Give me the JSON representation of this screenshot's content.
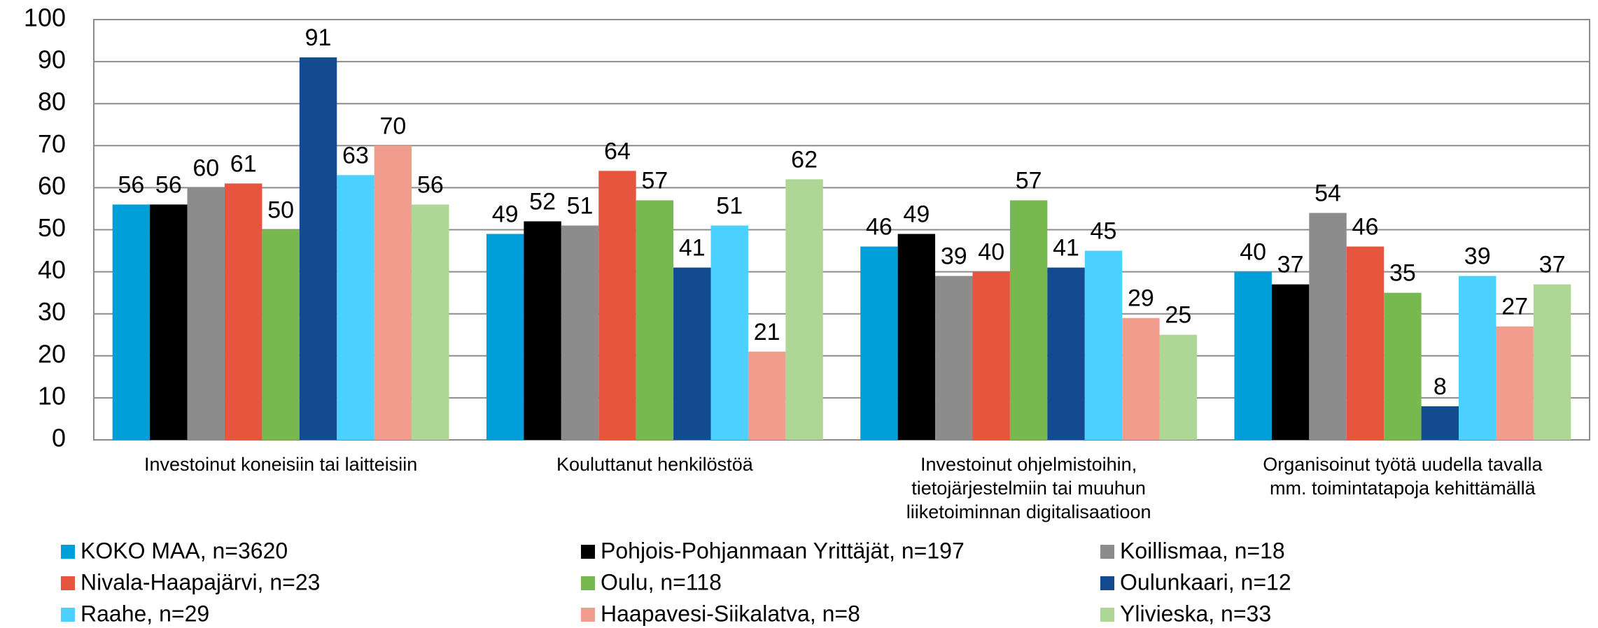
{
  "chart_data": {
    "type": "bar",
    "categories": [
      "Investoinut koneisiin tai laitteisiin",
      "Kouluttanut henkilöstöä",
      "Investoinut ohjelmistoihin,\ntietojärjestelmiin tai muuhun\nliiketoiminnan digitalisaatioon",
      "Organisoinut työtä uudella tavalla\nmm. toimintatapoja kehittämällä"
    ],
    "series": [
      {
        "name": "KOKO MAA, n=3620",
        "color": "#009fda",
        "values": [
          56,
          49,
          46,
          40
        ]
      },
      {
        "name": "Pohjois-Pohjanmaan Yrittäjät, n=197",
        "color": "#000000",
        "values": [
          56,
          52,
          49,
          37
        ]
      },
      {
        "name": "Koillismaa, n=18",
        "color": "#8c8c8c",
        "values": [
          60,
          51,
          39,
          54
        ]
      },
      {
        "name": "Nivala-Haapajärvi, n=23",
        "color": "#e8553e",
        "values": [
          61,
          64,
          40,
          46
        ]
      },
      {
        "name": "Oulu, n=118",
        "color": "#77b94f",
        "values": [
          50,
          57,
          57,
          35
        ]
      },
      {
        "name": "Oulunkaari, n=12",
        "color": "#124b8f",
        "values": [
          91,
          41,
          41,
          8
        ]
      },
      {
        "name": "Raahe, n=29",
        "color": "#4cd0ff",
        "values": [
          63,
          51,
          45,
          39
        ]
      },
      {
        "name": "Haapavesi-Siikalatva, n=8",
        "color": "#f29c8d",
        "values": [
          70,
          21,
          29,
          27
        ]
      },
      {
        "name": "Ylivieska, n=33",
        "color": "#aed694",
        "values": [
          56,
          62,
          25,
          37
        ]
      }
    ],
    "ylim": [
      0,
      100
    ],
    "yticks": [
      0,
      10,
      20,
      30,
      40,
      50,
      60,
      70,
      80,
      90,
      100
    ],
    "grid": true
  }
}
